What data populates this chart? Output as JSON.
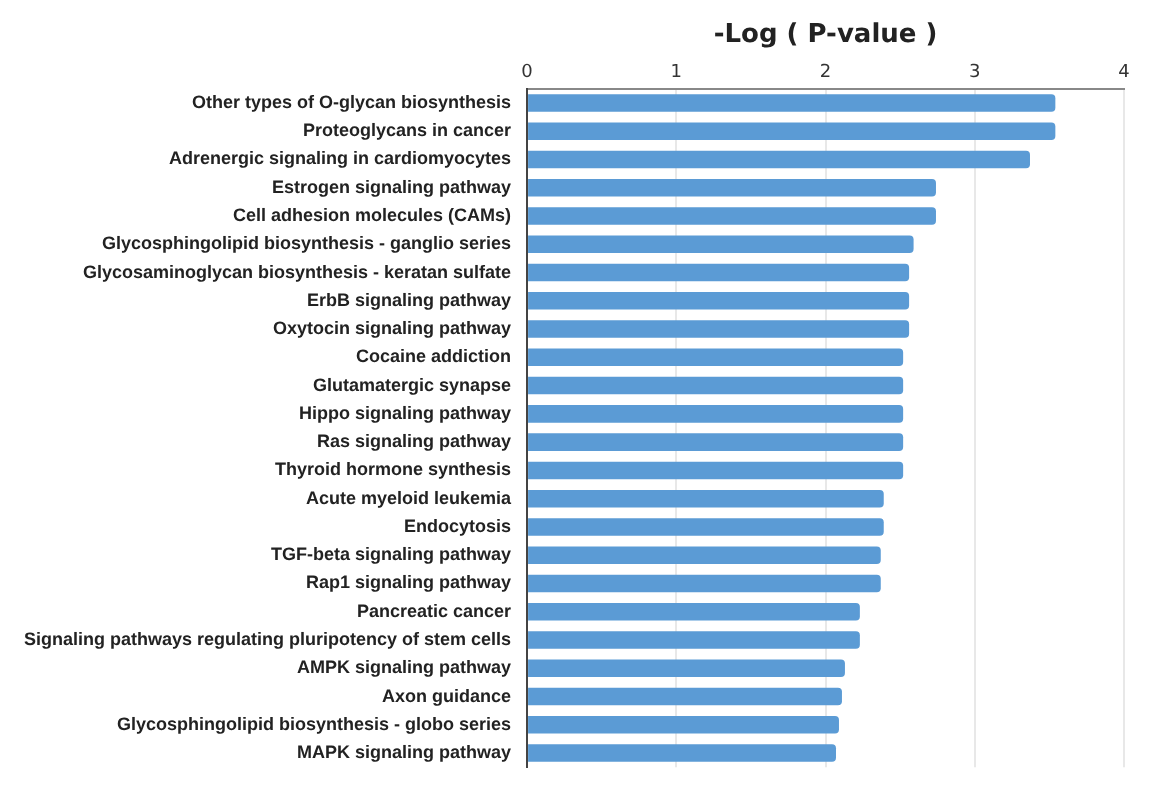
{
  "chart_data": {
    "type": "bar",
    "orientation": "horizontal",
    "xlabel": "-Log ( P-value )",
    "categories": [
      "Other types of O-glycan biosynthesis",
      "Proteoglycans in cancer",
      "Adrenergic signaling in cardiomyocytes",
      "Estrogen signaling pathway",
      "Cell adhesion molecules (CAMs)",
      "Glycosphingolipid biosynthesis - ganglio series",
      "Glycosaminoglycan biosynthesis - keratan sulfate",
      "ErbB signaling pathway",
      "Oxytocin signaling pathway",
      "Cocaine addiction",
      "Glutamatergic synapse",
      "Hippo signaling pathway",
      "Ras signaling pathway",
      "Thyroid hormone synthesis",
      "Acute myeloid leukemia",
      "Endocytosis",
      "TGF-beta signaling pathway",
      "Rap1 signaling pathway",
      "Pancreatic cancer",
      "Signaling pathways regulating pluripotency of stem cells",
      "AMPK signaling pathway",
      "Axon guidance",
      "Glycosphingolipid biosynthesis - globo series",
      "MAPK signaling pathway"
    ],
    "values": [
      3.54,
      3.54,
      3.37,
      2.74,
      2.74,
      2.59,
      2.56,
      2.56,
      2.56,
      2.52,
      2.52,
      2.52,
      2.52,
      2.52,
      2.39,
      2.39,
      2.37,
      2.37,
      2.23,
      2.23,
      2.13,
      2.11,
      2.09,
      2.07
    ],
    "color": "#5b9bd5",
    "xlim": [
      0,
      4
    ],
    "xticks": [
      0,
      1,
      2,
      3,
      4
    ],
    "grid": "x",
    "legend": false
  }
}
